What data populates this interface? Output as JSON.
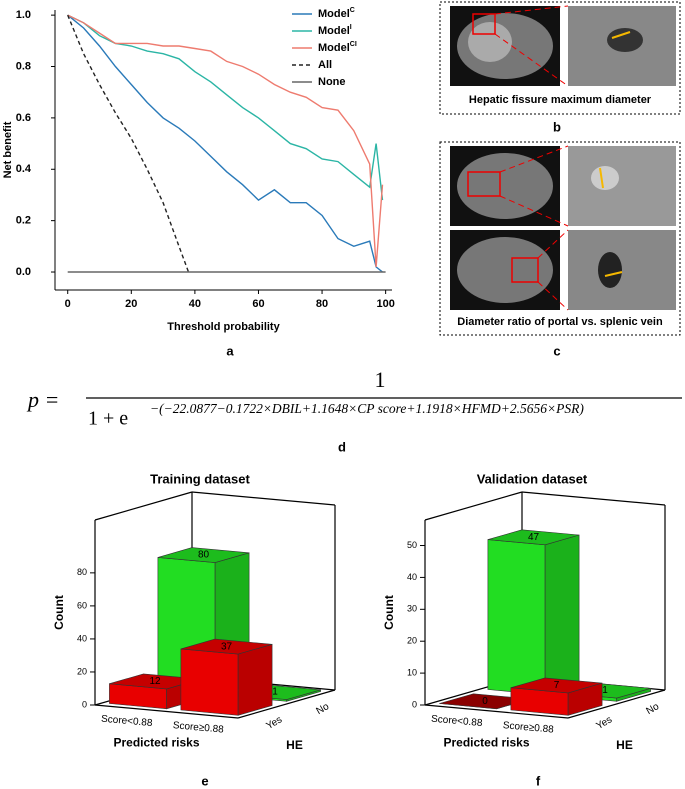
{
  "chart_data": [
    {
      "type": "line",
      "panel_label": "a",
      "x_label": "Threshold probability",
      "y_label": "Net benefit",
      "x": [
        0,
        5,
        10,
        15,
        20,
        25,
        30,
        35,
        40,
        45,
        50,
        55,
        60,
        65,
        70,
        75,
        80,
        85,
        90,
        95,
        97,
        99
      ],
      "series": [
        {
          "name": "Model",
          "superscript": "C",
          "color": "#2a7ab9",
          "values": [
            1.0,
            0.95,
            0.88,
            0.8,
            0.73,
            0.66,
            0.6,
            0.56,
            0.51,
            0.45,
            0.39,
            0.34,
            0.28,
            0.32,
            0.27,
            0.27,
            0.22,
            0.13,
            0.1,
            0.12,
            0.02,
            0.0
          ]
        },
        {
          "name": "Model",
          "superscript": "I",
          "color": "#2bb5a5",
          "values": [
            1.0,
            0.97,
            0.92,
            0.89,
            0.88,
            0.86,
            0.85,
            0.83,
            0.78,
            0.74,
            0.69,
            0.64,
            0.6,
            0.55,
            0.5,
            0.48,
            0.44,
            0.43,
            0.38,
            0.33,
            0.5,
            0.28
          ]
        },
        {
          "name": "Model",
          "superscript": "CI",
          "color": "#ee7b6f",
          "values": [
            1.0,
            0.97,
            0.93,
            0.89,
            0.89,
            0.89,
            0.88,
            0.88,
            0.87,
            0.86,
            0.82,
            0.8,
            0.77,
            0.73,
            0.7,
            0.68,
            0.64,
            0.63,
            0.55,
            0.42,
            0.02,
            0.34
          ]
        },
        {
          "name": "All",
          "color": "#222222",
          "dashed": true,
          "x": [
            0,
            5,
            10,
            15,
            20,
            25,
            30,
            35,
            38
          ],
          "values": [
            1.0,
            0.85,
            0.73,
            0.62,
            0.52,
            0.4,
            0.27,
            0.1,
            0.0
          ]
        },
        {
          "name": "None",
          "color": "#666666",
          "x": [
            0,
            100
          ],
          "values": [
            0.0,
            0.0
          ]
        }
      ],
      "xlim": [
        -4,
        102
      ],
      "xticks": [
        0,
        20,
        40,
        60,
        80,
        100
      ],
      "ylim": [
        -0.07,
        1.02
      ],
      "yticks": [
        {
          "value": 0,
          "label": "0.0"
        },
        {
          "value": 0.2,
          "label": "0.2"
        },
        {
          "value": 0.4,
          "label": "0.4"
        },
        {
          "value": 0.6,
          "label": "0.6"
        },
        {
          "value": 0.8,
          "label": "0.8"
        },
        {
          "value": 1,
          "label": "1.0"
        }
      ]
    },
    {
      "type": "bar3d",
      "panel_label": "e",
      "title": "Training dataset",
      "x_label": "Predicted risks",
      "depth_label": "HE",
      "y_label": "Count",
      "categories": [
        "Score<0.88",
        "Score≥0.88"
      ],
      "series": [
        {
          "name": "Yes",
          "color": "#e80000",
          "values": [
            12,
            37
          ]
        },
        {
          "name": "No",
          "color": "#22dd22",
          "values": [
            80,
            1
          ]
        }
      ],
      "ylim": [
        0,
        112
      ],
      "yticks": [
        0,
        20,
        40,
        60,
        80
      ]
    },
    {
      "type": "bar3d",
      "panel_label": "f",
      "title": "Validation dataset",
      "x_label": "Predicted risks",
      "depth_label": "HE",
      "y_label": "Count",
      "categories": [
        "Score<0.88",
        "Score≥0.88"
      ],
      "series": [
        {
          "name": "Yes",
          "color": "#e80000",
          "values": [
            0,
            7
          ]
        },
        {
          "name": "No",
          "color": "#22dd22",
          "values": [
            47,
            1
          ]
        }
      ],
      "ylim": [
        0,
        58
      ],
      "yticks": [
        0,
        10,
        20,
        30,
        40,
        50
      ]
    }
  ],
  "panels": {
    "b": {
      "label": "b",
      "caption": "Hepatic fissure maximum diameter"
    },
    "c": {
      "label": "c",
      "caption": "Diameter ratio of portal vs. splenic vein"
    }
  },
  "formula": {
    "label": "d",
    "lhs": "p =",
    "numerator": "1",
    "denominator": "1 + e",
    "exponent": "−(−22.0877−0.1722×DBIL+1.1648×CP  score+1.1918×HFMD+2.5656×PSR)"
  }
}
